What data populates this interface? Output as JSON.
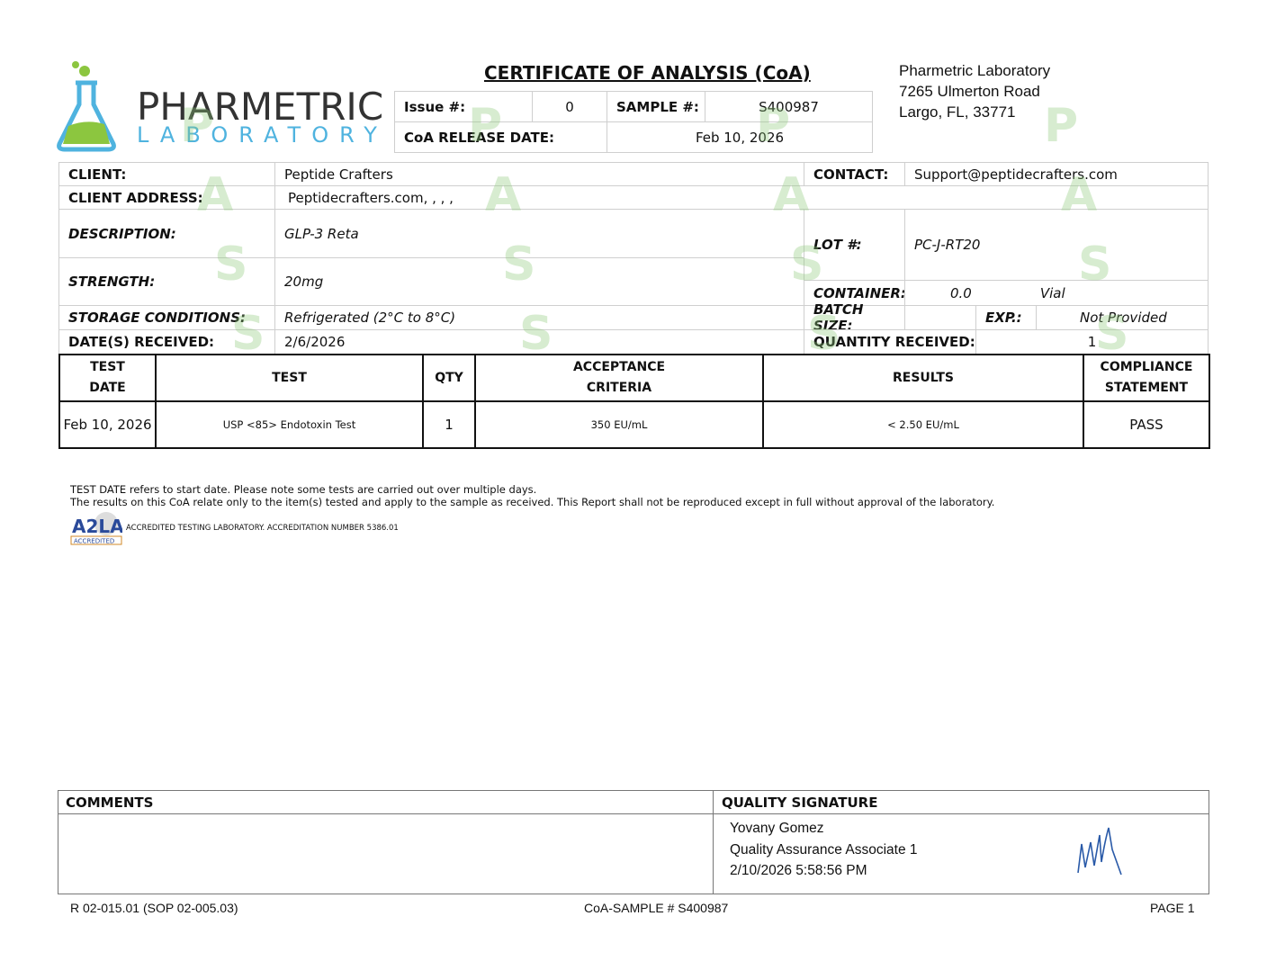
{
  "logo": {
    "name": "PHARMETRIC",
    "sub": "LABORATORY"
  },
  "title": "CERTIFICATE OF ANALYSIS (CoA)",
  "header": {
    "issue_label": "Issue  #:",
    "issue": "0",
    "sample_label": "SAMPLE #:",
    "sample": "S400987",
    "release_label": "CoA RELEASE DATE:",
    "release": "Feb 10, 2026"
  },
  "lab_address": [
    "Pharmetric Laboratory",
    "7265 Ulmerton Road",
    "Largo, FL, 33771"
  ],
  "info": {
    "client_label": "CLIENT:",
    "client": "Peptide Crafters",
    "contact_label": "CONTACT:",
    "contact": "Support@peptidecrafters.com",
    "address_label": "CLIENT ADDRESS:",
    "address": "Peptidecrafters.com, , , ,",
    "description_label": "DESCRIPTION:",
    "description": "GLP-3 Reta",
    "lot_label": "LOT #:",
    "lot": "PC-J-RT20",
    "strength_label": "STRENGTH:",
    "strength": "20mg",
    "container_label": "CONTAINER:",
    "container_qty": "0.0",
    "container": "Vial",
    "storage_label": "STORAGE CONDITIONS:",
    "storage": "Refrigerated (2°C to 8°C)",
    "batch_label": "BATCH SIZE:",
    "batch": "",
    "exp_label": "EXP.:",
    "exp": "Not Provided",
    "received_label": "DATE(S) RECEIVED:",
    "received": "2/6/2026",
    "qty_received_label": "QUANTITY RECEIVED:",
    "qty_received": "1"
  },
  "tests": {
    "headers": [
      "TEST\nDATE",
      "TEST",
      "QTY",
      "ACCEPTANCE\nCRITERIA",
      "RESULTS",
      "COMPLIANCE\nSTATEMENT"
    ],
    "rows": [
      [
        "Feb 10, 2026",
        "USP <85> Endotoxin Test",
        "1",
        "350 EU/mL",
        "< 2.50 EU/mL",
        "PASS"
      ]
    ]
  },
  "notes": [
    "TEST DATE refers to start date. Please note some tests are carried out over multiple days.",
    "The results on this CoA relate only to the item(s) tested and apply to the sample as received. This Report shall not be reproduced except in full without approval of the laboratory."
  ],
  "accreditation": {
    "badge": "ACCREDITED",
    "text": "ACCREDITED TESTING LABORATORY. ACCREDITATION NUMBER 5386.01"
  },
  "watermark": "PASS",
  "comments_label": "COMMENTS",
  "comments": "",
  "signature": {
    "label": "QUALITY SIGNATURE",
    "name": "Yovany Gomez",
    "role": "Quality  Assurance Associate 1",
    "datetime": "2/10/2026 5:58:56 PM"
  },
  "footer": {
    "left": "R 02-015.01 (SOP 02-005.03)",
    "center": "CoA-SAMPLE # S400987",
    "right": "PAGE 1"
  },
  "colors": {
    "green": "#8cc63f",
    "blue": "#4fb3df",
    "watermark": "#8cc878"
  }
}
